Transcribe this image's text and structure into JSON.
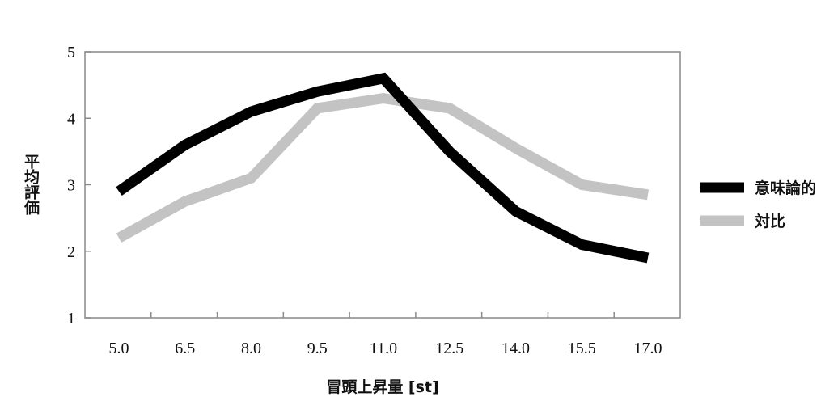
{
  "chart_data": {
    "type": "line",
    "x": [
      "5.0",
      "6.5",
      "8.0",
      "9.5",
      "11.0",
      "12.5",
      "14.0",
      "15.5",
      "17.0"
    ],
    "ylim": [
      1,
      5
    ],
    "yticks": [
      "1",
      "2",
      "3",
      "4",
      "5"
    ],
    "xlabel": "冒頭上昇量 [st]",
    "ylabel": "平均評価",
    "grid": false,
    "legend_position": "right",
    "series": [
      {
        "name": "意味論的",
        "color": "#000000",
        "values": [
          2.9,
          3.6,
          4.1,
          4.4,
          4.6,
          3.5,
          2.6,
          2.1,
          1.9
        ]
      },
      {
        "name": "対比",
        "color": "#c3c3c3",
        "values": [
          2.2,
          2.75,
          3.1,
          4.15,
          4.3,
          4.15,
          3.55,
          3.0,
          2.85
        ]
      }
    ]
  }
}
